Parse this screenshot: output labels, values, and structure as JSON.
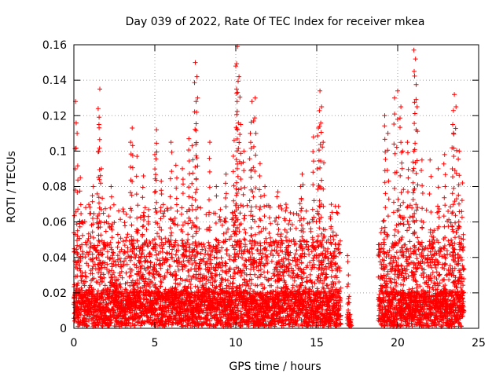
{
  "chart_data": {
    "type": "scatter",
    "title": "Day 039 of 2022, Rate Of TEC Index for receiver mkea",
    "xlabel": "GPS time / hours",
    "ylabel": "ROTI / TECUs",
    "xlim": [
      0,
      25
    ],
    "ylim": [
      0,
      0.16
    ],
    "x_ticks": [
      0,
      5,
      10,
      15,
      20,
      25
    ],
    "y_ticks": [
      0,
      0.02,
      0.04,
      0.06,
      0.08,
      0.1,
      0.12,
      0.14,
      0.16
    ],
    "x_tick_labels": [
      "0",
      "5",
      "10",
      "15",
      "20",
      "25"
    ],
    "y_tick_labels": [
      "0",
      "0.02",
      "0.04",
      "0.06",
      "0.08",
      "0.1",
      "0.12",
      "0.14",
      "0.16"
    ],
    "grid": true,
    "marker": "plus",
    "color": "#ff0000",
    "data_gap_hours": [
      16.5,
      18.8
    ],
    "peaks": [
      {
        "x": 0.1,
        "y": 0.128
      },
      {
        "x": 0.2,
        "y": 0.11
      },
      {
        "x": 0.4,
        "y": 0.085
      },
      {
        "x": 1.2,
        "y": 0.08
      },
      {
        "x": 1.5,
        "y": 0.124
      },
      {
        "x": 1.6,
        "y": 0.135
      },
      {
        "x": 1.55,
        "y": 0.115
      },
      {
        "x": 1.7,
        "y": 0.09
      },
      {
        "x": 2.3,
        "y": 0.08
      },
      {
        "x": 3.6,
        "y": 0.113
      },
      {
        "x": 3.5,
        "y": 0.105
      },
      {
        "x": 3.9,
        "y": 0.097
      },
      {
        "x": 4.3,
        "y": 0.086
      },
      {
        "x": 5.1,
        "y": 0.112
      },
      {
        "x": 5.0,
        "y": 0.098
      },
      {
        "x": 5.4,
        "y": 0.083
      },
      {
        "x": 6.0,
        "y": 0.105
      },
      {
        "x": 6.3,
        "y": 0.092
      },
      {
        "x": 6.7,
        "y": 0.09
      },
      {
        "x": 7.5,
        "y": 0.15
      },
      {
        "x": 7.6,
        "y": 0.142
      },
      {
        "x": 7.55,
        "y": 0.128
      },
      {
        "x": 7.3,
        "y": 0.103
      },
      {
        "x": 7.1,
        "y": 0.107
      },
      {
        "x": 8.4,
        "y": 0.105
      },
      {
        "x": 8.8,
        "y": 0.08
      },
      {
        "x": 9.4,
        "y": 0.087
      },
      {
        "x": 10.1,
        "y": 0.159
      },
      {
        "x": 10.0,
        "y": 0.148
      },
      {
        "x": 10.2,
        "y": 0.142
      },
      {
        "x": 10.05,
        "y": 0.135
      },
      {
        "x": 10.3,
        "y": 0.115
      },
      {
        "x": 9.9,
        "y": 0.106
      },
      {
        "x": 10.5,
        "y": 0.1
      },
      {
        "x": 11.0,
        "y": 0.128
      },
      {
        "x": 11.2,
        "y": 0.13
      },
      {
        "x": 11.1,
        "y": 0.117
      },
      {
        "x": 10.9,
        "y": 0.11
      },
      {
        "x": 11.5,
        "y": 0.093
      },
      {
        "x": 11.8,
        "y": 0.08
      },
      {
        "x": 12.6,
        "y": 0.077
      },
      {
        "x": 13.1,
        "y": 0.07
      },
      {
        "x": 14.1,
        "y": 0.087
      },
      {
        "x": 14.0,
        "y": 0.08
      },
      {
        "x": 14.8,
        "y": 0.108
      },
      {
        "x": 15.2,
        "y": 0.134
      },
      {
        "x": 15.3,
        "y": 0.125
      },
      {
        "x": 15.1,
        "y": 0.113
      },
      {
        "x": 15.4,
        "y": 0.105
      },
      {
        "x": 15.9,
        "y": 0.07
      },
      {
        "x": 16.2,
        "y": 0.045
      },
      {
        "x": 16.9,
        "y": 0.041
      },
      {
        "x": 17.0,
        "y": 0.018
      },
      {
        "x": 17.05,
        "y": 0.005
      },
      {
        "x": 19.2,
        "y": 0.12
      },
      {
        "x": 19.4,
        "y": 0.11
      },
      {
        "x": 19.8,
        "y": 0.13
      },
      {
        "x": 20.0,
        "y": 0.134
      },
      {
        "x": 20.2,
        "y": 0.125
      },
      {
        "x": 20.3,
        "y": 0.1
      },
      {
        "x": 20.6,
        "y": 0.105
      },
      {
        "x": 21.0,
        "y": 0.157
      },
      {
        "x": 21.1,
        "y": 0.152
      },
      {
        "x": 21.2,
        "y": 0.125
      },
      {
        "x": 21.0,
        "y": 0.1
      },
      {
        "x": 21.5,
        "y": 0.095
      },
      {
        "x": 22.0,
        "y": 0.095
      },
      {
        "x": 22.5,
        "y": 0.09
      },
      {
        "x": 22.9,
        "y": 0.098
      },
      {
        "x": 23.5,
        "y": 0.132
      },
      {
        "x": 23.6,
        "y": 0.125
      },
      {
        "x": 23.4,
        "y": 0.115
      },
      {
        "x": 23.8,
        "y": 0.1
      },
      {
        "x": 24.0,
        "y": 0.082
      }
    ]
  }
}
